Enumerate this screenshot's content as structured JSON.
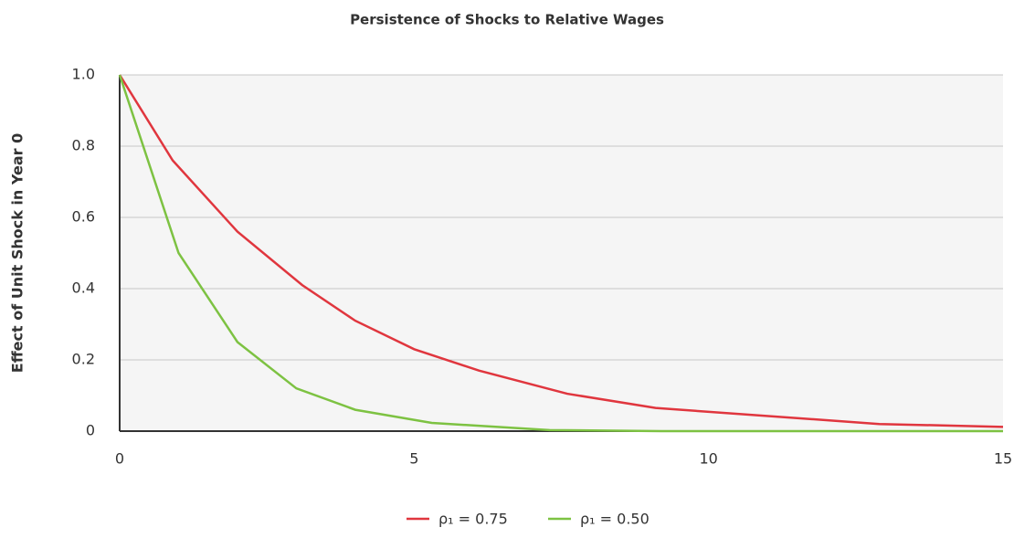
{
  "chart_data": {
    "type": "line",
    "title": "Persistence of Shocks to Relative Wages",
    "y_label": "Effect of Unit Shock in Year 0",
    "xlim": [
      0,
      15
    ],
    "xticks": [
      0,
      5,
      10,
      15
    ],
    "ylim": [
      0,
      1
    ],
    "yticks": [
      0,
      0.2,
      0.4,
      0.6,
      0.8,
      {
        "value": 1,
        "label": "1.0"
      }
    ],
    "grid": true,
    "legend": "bottom",
    "series": [
      {
        "name": "ρ₁ = 0.75",
        "color": "#e0363e",
        "x": [
          0,
          0.9,
          2,
          3.1,
          4,
          5,
          6.1,
          7.6,
          9.1,
          12.9,
          15
        ],
        "values": [
          1,
          0.76,
          0.56,
          0.41,
          0.31,
          0.23,
          0.17,
          0.105,
          0.065,
          0.02,
          0.012
        ]
      },
      {
        "name": "ρ₁ = 0.50",
        "color": "#7dc242",
        "x": [
          0,
          1,
          2,
          3,
          4,
          5.3,
          7.3,
          9.2,
          15
        ],
        "values": [
          1,
          0.5,
          0.25,
          0.12,
          0.06,
          0.023,
          0.003,
          0,
          0
        ]
      }
    ]
  }
}
